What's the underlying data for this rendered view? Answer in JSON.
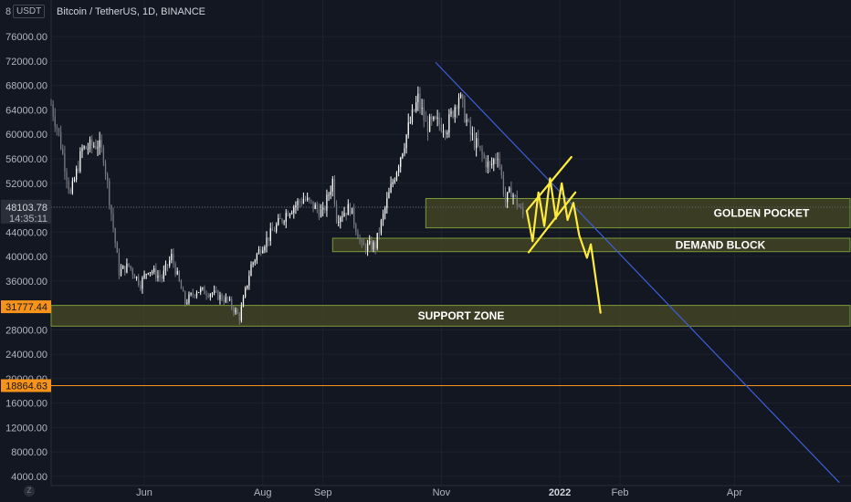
{
  "chart_data": {
    "type": "candlestick",
    "title": "Bitcoin / TetherUS, 1D, BINANCE",
    "unit": "USDT",
    "ylim": [
      2500,
      82000
    ],
    "y_ticks": [
      4000,
      8000,
      12000,
      16000,
      20000,
      24000,
      28000,
      32000,
      36000,
      40000,
      44000,
      48000,
      52000,
      56000,
      60000,
      64000,
      68000,
      72000,
      76000
    ],
    "y_tick_labels": [
      "4000.00",
      "8000.00",
      "12000.00",
      "16000.00",
      "20000.00",
      "24000.00",
      "28000.00",
      "32000.00",
      "36000.00",
      "40000.00",
      "44000.00",
      "48000.00",
      "52000.00",
      "56000.00",
      "60000.00",
      "64000.00",
      "68000.00",
      "72000.00",
      "76000.00"
    ],
    "y_top_partial": "8",
    "x_ticks": [
      {
        "date": "2021-06-01",
        "label": "Jun",
        "bold": false
      },
      {
        "date": "2021-08-01",
        "label": "Aug",
        "bold": false
      },
      {
        "date": "2021-09-01",
        "label": "Sep",
        "bold": false
      },
      {
        "date": "2021-11-01",
        "label": "Nov",
        "bold": false
      },
      {
        "date": "2022-01-01",
        "label": "2022",
        "bold": true
      },
      {
        "date": "2022-02-01",
        "label": "Feb",
        "bold": false
      },
      {
        "date": "2022-04-01",
        "label": "Apr",
        "bold": false
      }
    ],
    "xlim": [
      "2021-04-14",
      "2022-05-31"
    ],
    "price_series": [
      [
        "2021-04-14",
        64900
      ],
      [
        "2021-04-18",
        60000
      ],
      [
        "2021-04-24",
        50000
      ],
      [
        "2021-04-30",
        57500
      ],
      [
        "2021-05-08",
        58500
      ],
      [
        "2021-05-11",
        56500
      ],
      [
        "2021-05-14",
        49500
      ],
      [
        "2021-05-19",
        37500
      ],
      [
        "2021-05-24",
        38500
      ],
      [
        "2021-05-30",
        35500
      ],
      [
        "2021-06-03",
        38000
      ],
      [
        "2021-06-10",
        36500
      ],
      [
        "2021-06-15",
        40000
      ],
      [
        "2021-06-22",
        32500
      ],
      [
        "2021-06-28",
        34500
      ],
      [
        "2021-07-06",
        34000
      ],
      [
        "2021-07-14",
        32800
      ],
      [
        "2021-07-20",
        30000
      ],
      [
        "2021-07-26",
        38500
      ],
      [
        "2021-07-31",
        41500
      ],
      [
        "2021-08-07",
        44500
      ],
      [
        "2021-08-14",
        47500
      ],
      [
        "2021-08-22",
        49500
      ],
      [
        "2021-09-01",
        47000
      ],
      [
        "2021-09-06",
        52500
      ],
      [
        "2021-09-08",
        46500
      ],
      [
        "2021-09-15",
        48000
      ],
      [
        "2021-09-21",
        41500
      ],
      [
        "2021-09-28",
        41800
      ],
      [
        "2021-10-04",
        49000
      ],
      [
        "2021-10-10",
        55500
      ],
      [
        "2021-10-15",
        61000
      ],
      [
        "2021-10-20",
        65800
      ],
      [
        "2021-10-24",
        61500
      ],
      [
        "2021-10-30",
        61800
      ],
      [
        "2021-11-04",
        61300
      ],
      [
        "2021-11-10",
        66500
      ],
      [
        "2021-11-16",
        60000
      ],
      [
        "2021-11-22",
        56500
      ],
      [
        "2021-11-26",
        54500
      ],
      [
        "2021-11-30",
        57000
      ],
      [
        "2021-12-04",
        49000
      ],
      [
        "2021-12-07",
        50800
      ],
      [
        "2021-12-13",
        46800
      ]
    ],
    "reference_price": {
      "label": "48103.78",
      "countdown": "14:35:11",
      "value": 48103.78
    },
    "price_labels": [
      {
        "label": "31777.44",
        "value": 31777.44,
        "color": "#f7931a"
      },
      {
        "label": "18864.63",
        "value": 18864.63,
        "color": "#f7931a"
      }
    ],
    "zones": [
      {
        "name": "GOLDEN POCKET",
        "top": 49500,
        "bottom": 44700,
        "start": "2021-10-24",
        "end": "2022-05-31"
      },
      {
        "name": "DEMAND BLOCK",
        "top": 43000,
        "bottom": 40800,
        "start": "2021-09-06",
        "end": "2022-05-31"
      },
      {
        "name": "SUPPORT ZONE",
        "top": 32000,
        "bottom": 28600,
        "start": "2021-04-14",
        "end": "2022-05-31"
      }
    ],
    "trendline": {
      "color": "#3d5fd6",
      "from": [
        "2021-10-29",
        71800
      ],
      "to": [
        "2022-05-25",
        3000
      ]
    },
    "drawing": {
      "color": "#ffeb3b",
      "wedge_upper": [
        [
          "2021-12-15",
          47500
        ],
        [
          "2022-01-07",
          56300
        ]
      ],
      "wedge_lower": [
        [
          "2021-12-16",
          40700
        ],
        [
          "2022-01-09",
          50500
        ]
      ],
      "zigzag": [
        [
          "2021-12-15",
          47500
        ],
        [
          "2021-12-18",
          42500
        ],
        [
          "2021-12-21",
          50500
        ],
        [
          "2021-12-24",
          45000
        ],
        [
          "2021-12-27",
          52800
        ],
        [
          "2021-12-30",
          46200
        ],
        [
          "2022-01-02",
          52000
        ],
        [
          "2022-01-05",
          46000
        ],
        [
          "2022-01-08",
          48800
        ],
        [
          "2022-01-11",
          43500
        ],
        [
          "2022-01-15",
          39800
        ],
        [
          "2022-01-17",
          42000
        ],
        [
          "2022-01-22",
          30800
        ]
      ]
    },
    "orange_line": 18864.63,
    "colors": {
      "background": "#131722",
      "grid": "#1e222d",
      "candle_up": "#ffffff",
      "candle_down": "#787b86",
      "zone_fill": "#4a4a26",
      "zone_border": "#7a9a3a"
    }
  }
}
